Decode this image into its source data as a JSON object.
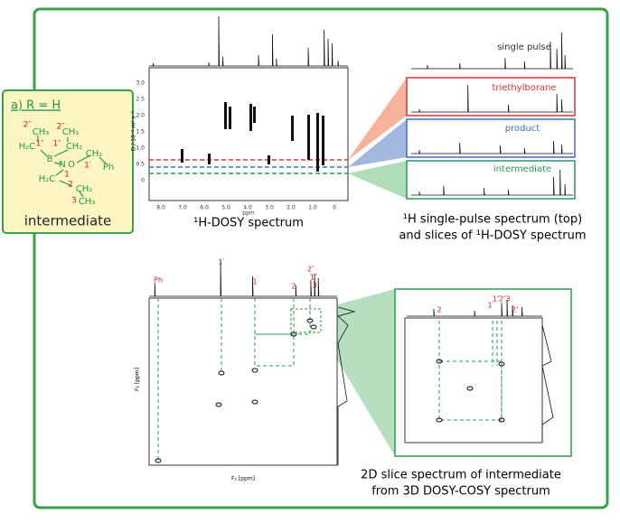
{
  "panel_label": "a) R = H",
  "molecule": {
    "groups": [
      "CH₃",
      "CH₃",
      "H₂C",
      "CH₂",
      "B",
      "N",
      "O",
      "CH₂",
      "Ph",
      "H₂C",
      "CH₂",
      "CH₃"
    ],
    "locants": [
      "2″",
      "2″",
      "1″",
      "1″",
      "1′",
      "1",
      "2",
      "3"
    ],
    "name": "intermediate"
  },
  "dosy": {
    "caption": "¹H-DOSY spectrum",
    "x_ticks": [
      "8.0",
      "7.0",
      "6.0",
      "5.0",
      "4.0",
      "3.0",
      "2.0",
      "1.0",
      "0"
    ],
    "x_unit": "ppm",
    "y_ticks": [
      "0",
      "0.5",
      "1.0",
      "1.5",
      "2.0",
      "2.5",
      "3.0"
    ],
    "y_label": "D / 10⁻⁹ m² s⁻¹"
  },
  "slices": {
    "names": [
      "single pulse",
      "triethylborane",
      "product",
      "intermediate"
    ],
    "caption": [
      "¹H single-pulse spectrum (top)",
      "and slices of ¹H-DOSY spectrum"
    ]
  },
  "cosy": {
    "peak_labels": [
      "Ph",
      "1′",
      "1",
      "2",
      "2″",
      "1″",
      "3"
    ],
    "x_label": "F₂ [ppm]",
    "y_label": "F₁ [ppm]",
    "inset_labels": [
      "2",
      "1′",
      "1″",
      "2″",
      "3",
      "2″"
    ],
    "caption": [
      "2D slice spectrum of intermediate",
      "from 3D DOSY-COSY spectrum"
    ]
  }
}
